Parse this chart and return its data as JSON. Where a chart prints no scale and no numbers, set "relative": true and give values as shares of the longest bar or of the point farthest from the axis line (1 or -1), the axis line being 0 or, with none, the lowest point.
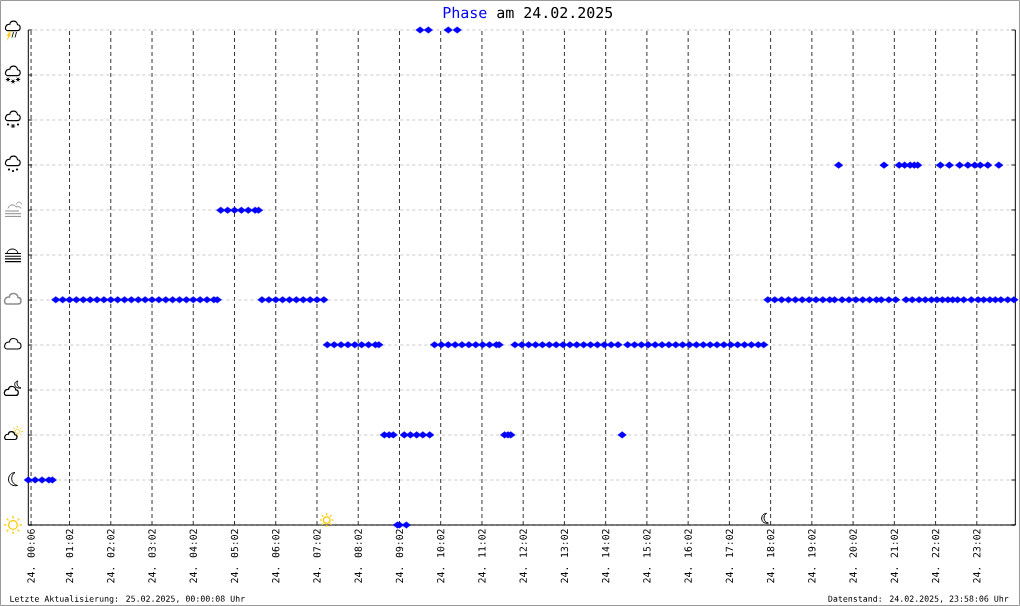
{
  "chart_data": {
    "type": "scatter",
    "title": "am 24.02.2025",
    "annotations": [
      "Letzte Aktualisierung: 25.02.2025, 00:00:08 Uhr",
      "Datenstand: 24.02.2025, 23:58:06 Uhr"
    ],
    "xlim": [
      "2025-02-24T00:02",
      "2025-02-24T23:58"
    ],
    "xticks": [
      {
        "value": "2025-02-24T00:06",
        "label": "24. 00:06"
      },
      {
        "value": "2025-02-24T01:02",
        "label": "24. 01:02"
      },
      {
        "value": "2025-02-24T02:02",
        "label": "24. 02:02"
      },
      {
        "value": "2025-02-24T03:02",
        "label": "24. 03:02"
      },
      {
        "value": "2025-02-24T04:02",
        "label": "24. 04:02"
      },
      {
        "value": "2025-02-24T05:02",
        "label": "24. 05:02"
      },
      {
        "value": "2025-02-24T06:02",
        "label": "24. 06:02"
      },
      {
        "value": "2025-02-24T07:02",
        "label": "24. 07:02"
      },
      {
        "value": "2025-02-24T08:02",
        "label": "24. 08:02"
      },
      {
        "value": "2025-02-24T09:02",
        "label": "24. 09:02"
      },
      {
        "value": "2025-02-24T10:02",
        "label": "24. 10:02"
      },
      {
        "value": "2025-02-24T11:02",
        "label": "24. 11:02"
      },
      {
        "value": "2025-02-24T12:02",
        "label": "24. 12:02"
      },
      {
        "value": "2025-02-24T13:02",
        "label": "24. 13:02"
      },
      {
        "value": "2025-02-24T14:02",
        "label": "24. 14:02"
      },
      {
        "value": "2025-02-24T15:02",
        "label": "24. 15:02"
      },
      {
        "value": "2025-02-24T16:02",
        "label": "24. 16:02"
      },
      {
        "value": "2025-02-24T17:02",
        "label": "24. 17:02"
      },
      {
        "value": "2025-02-24T18:02",
        "label": "24. 18:02"
      },
      {
        "value": "2025-02-24T19:02",
        "label": "24. 19:02"
      },
      {
        "value": "2025-02-24T20:02",
        "label": "24. 20:02"
      },
      {
        "value": "2025-02-24T21:02",
        "label": "24. 21:02"
      },
      {
        "value": "2025-02-24T22:02",
        "label": "24. 22:02"
      },
      {
        "value": "2025-02-24T23:02",
        "label": "24. 23:02"
      }
    ],
    "relative": true,
    "grid": true,
    "marker": "diamond",
    "series": [
      {
        "name": "Phase",
        "color": "#0000ff",
        "x": [
          "2025-02-24T00:02",
          "2025-02-24T00:12",
          "2025-02-24T00:22",
          "2025-02-24T00:32",
          "2025-02-24T00:37",
          "2025-02-24T00:42",
          "2025-02-24T00:52",
          "2025-02-24T01:02",
          "2025-02-24T01:12",
          "2025-02-24T01:22",
          "2025-02-24T01:32",
          "2025-02-24T01:42",
          "2025-02-24T01:52",
          "2025-02-24T02:02",
          "2025-02-24T02:12",
          "2025-02-24T02:22",
          "2025-02-24T02:32",
          "2025-02-24T02:42",
          "2025-02-24T02:52",
          "2025-02-24T03:02",
          "2025-02-24T03:12",
          "2025-02-24T03:22",
          "2025-02-24T03:32",
          "2025-02-24T03:42",
          "2025-02-24T03:52",
          "2025-02-24T04:02",
          "2025-02-24T04:12",
          "2025-02-24T04:22",
          "2025-02-24T04:32",
          "2025-02-24T04:37",
          "2025-02-24T04:42",
          "2025-02-24T04:52",
          "2025-02-24T05:02",
          "2025-02-24T05:12",
          "2025-02-24T05:22",
          "2025-02-24T05:32",
          "2025-02-24T05:37",
          "2025-02-24T05:42",
          "2025-02-24T05:52",
          "2025-02-24T06:02",
          "2025-02-24T06:12",
          "2025-02-24T06:22",
          "2025-02-24T06:32",
          "2025-02-24T06:42",
          "2025-02-24T06:52",
          "2025-02-24T07:02",
          "2025-02-24T07:12",
          "2025-02-24T07:17",
          "2025-02-24T07:27",
          "2025-02-24T07:37",
          "2025-02-24T07:47",
          "2025-02-24T07:57",
          "2025-02-24T08:07",
          "2025-02-24T08:17",
          "2025-02-24T08:27",
          "2025-02-24T08:32",
          "2025-02-24T08:40",
          "2025-02-24T08:47",
          "2025-02-24T08:53",
          "2025-02-24T08:59",
          "2025-02-24T09:02",
          "2025-02-24T09:12",
          "2025-02-24T09:09",
          "2025-02-24T09:18",
          "2025-02-24T09:27",
          "2025-02-24T09:36",
          "2025-02-24T09:46",
          "2025-02-24T09:32",
          "2025-02-24T09:44",
          "2025-02-24T10:13",
          "2025-02-24T10:26",
          "2025-02-24T09:53",
          "2025-02-24T10:03",
          "2025-02-24T10:13",
          "2025-02-24T10:23",
          "2025-02-24T10:33",
          "2025-02-24T10:43",
          "2025-02-24T10:53",
          "2025-02-24T11:03",
          "2025-02-24T11:13",
          "2025-02-24T11:23",
          "2025-02-24T11:27",
          "2025-02-24T11:35",
          "2025-02-24T11:40",
          "2025-02-24T11:44",
          "2025-02-24T11:50",
          "2025-02-24T12:00",
          "2025-02-24T12:10",
          "2025-02-24T12:20",
          "2025-02-24T12:30",
          "2025-02-24T12:40",
          "2025-02-24T12:50",
          "2025-02-24T13:00",
          "2025-02-24T13:10",
          "2025-02-24T13:20",
          "2025-02-24T13:30",
          "2025-02-24T13:40",
          "2025-02-24T13:50",
          "2025-02-24T14:00",
          "2025-02-24T14:10",
          "2025-02-24T14:20",
          "2025-02-24T14:26",
          "2025-02-24T14:34",
          "2025-02-24T14:44",
          "2025-02-24T14:54",
          "2025-02-24T15:04",
          "2025-02-24T15:14",
          "2025-02-24T15:24",
          "2025-02-24T15:34",
          "2025-02-24T15:44",
          "2025-02-24T15:54",
          "2025-02-24T16:04",
          "2025-02-24T16:14",
          "2025-02-24T16:24",
          "2025-02-24T16:34",
          "2025-02-24T16:44",
          "2025-02-24T16:54",
          "2025-02-24T17:04",
          "2025-02-24T17:14",
          "2025-02-24T17:24",
          "2025-02-24T17:34",
          "2025-02-24T17:44",
          "2025-02-24T17:52",
          "2025-02-24T17:58",
          "2025-02-24T18:08",
          "2025-02-24T18:18",
          "2025-02-24T18:28",
          "2025-02-24T18:38",
          "2025-02-24T18:48",
          "2025-02-24T18:58",
          "2025-02-24T19:08",
          "2025-02-24T19:18",
          "2025-02-24T19:28",
          "2025-02-24T19:35",
          "2025-02-24T19:41",
          "2025-02-24T19:46",
          "2025-02-24T19:56",
          "2025-02-24T20:06",
          "2025-02-24T20:16",
          "2025-02-24T20:26",
          "2025-02-24T20:36",
          "2025-02-24T20:43",
          "2025-02-24T20:47",
          "2025-02-24T20:54",
          "2025-02-24T21:04",
          "2025-02-24T21:09",
          "2025-02-24T21:17",
          "2025-02-24T21:19",
          "2025-02-24T21:25",
          "2025-02-24T21:28",
          "2025-02-24T21:31",
          "2025-02-24T21:36",
          "2025-02-24T21:38",
          "2025-02-24T21:47",
          "2025-02-24T21:56",
          "2025-02-24T22:04",
          "2025-02-24T22:09",
          "2025-02-24T22:12",
          "2025-02-24T22:20",
          "2025-02-24T22:22",
          "2025-02-24T22:27",
          "2025-02-24T22:34",
          "2025-02-24T22:37",
          "2025-02-24T22:43",
          "2025-02-24T22:49",
          "2025-02-24T22:54",
          "2025-02-24T22:59",
          "2025-02-24T23:04",
          "2025-02-24T23:07",
          "2025-02-24T23:12",
          "2025-02-24T23:18",
          "2025-02-24T23:21",
          "2025-02-24T23:29",
          "2025-02-24T23:34",
          "2025-02-24T23:37",
          "2025-02-24T23:47",
          "2025-02-24T23:56"
        ],
        "values": [
          0.091,
          0.091,
          0.091,
          0.091,
          0.091,
          0.455,
          0.455,
          0.455,
          0.455,
          0.455,
          0.455,
          0.455,
          0.455,
          0.455,
          0.455,
          0.455,
          0.455,
          0.455,
          0.455,
          0.455,
          0.455,
          0.455,
          0.455,
          0.455,
          0.455,
          0.455,
          0.455,
          0.455,
          0.455,
          0.455,
          0.636,
          0.636,
          0.636,
          0.636,
          0.636,
          0.636,
          0.636,
          0.455,
          0.455,
          0.455,
          0.455,
          0.455,
          0.455,
          0.455,
          0.455,
          0.455,
          0.455,
          0.364,
          0.364,
          0.364,
          0.364,
          0.364,
          0.364,
          0.364,
          0.364,
          0.364,
          0.182,
          0.182,
          0.182,
          0,
          0,
          0,
          0.182,
          0.182,
          0.182,
          0.182,
          0.182,
          1,
          1,
          1,
          1,
          0.364,
          0.364,
          0.364,
          0.364,
          0.364,
          0.364,
          0.364,
          0.364,
          0.364,
          0.364,
          0.364,
          0.182,
          0.182,
          0.182,
          0.364,
          0.364,
          0.364,
          0.364,
          0.364,
          0.364,
          0.364,
          0.364,
          0.364,
          0.364,
          0.364,
          0.364,
          0.364,
          0.364,
          0.364,
          0.364,
          0.182,
          0.364,
          0.364,
          0.364,
          0.364,
          0.364,
          0.364,
          0.364,
          0.364,
          0.364,
          0.364,
          0.364,
          0.364,
          0.364,
          0.364,
          0.364,
          0.364,
          0.364,
          0.364,
          0.364,
          0.364,
          0.364,
          0.455,
          0.455,
          0.455,
          0.455,
          0.455,
          0.455,
          0.455,
          0.455,
          0.455,
          0.455,
          0.455,
          0.727,
          0.455,
          0.455,
          0.455,
          0.455,
          0.455,
          0.455,
          0.455,
          0.727,
          0.455,
          0.455,
          0.727,
          0.727,
          0.455,
          0.727,
          0.455,
          0.727,
          0.727,
          0.455,
          0.455,
          0.455,
          0.455,
          0.727,
          0.455,
          0.455,
          0.727,
          0.455,
          0.455,
          0.727,
          0.455,
          0.727,
          0.455,
          0.727,
          0.455,
          0.727,
          0.455,
          0.727,
          0.455,
          0.455,
          0.727,
          0.455,
          0.455,
          0.455
        ]
      }
    ]
  }
}
